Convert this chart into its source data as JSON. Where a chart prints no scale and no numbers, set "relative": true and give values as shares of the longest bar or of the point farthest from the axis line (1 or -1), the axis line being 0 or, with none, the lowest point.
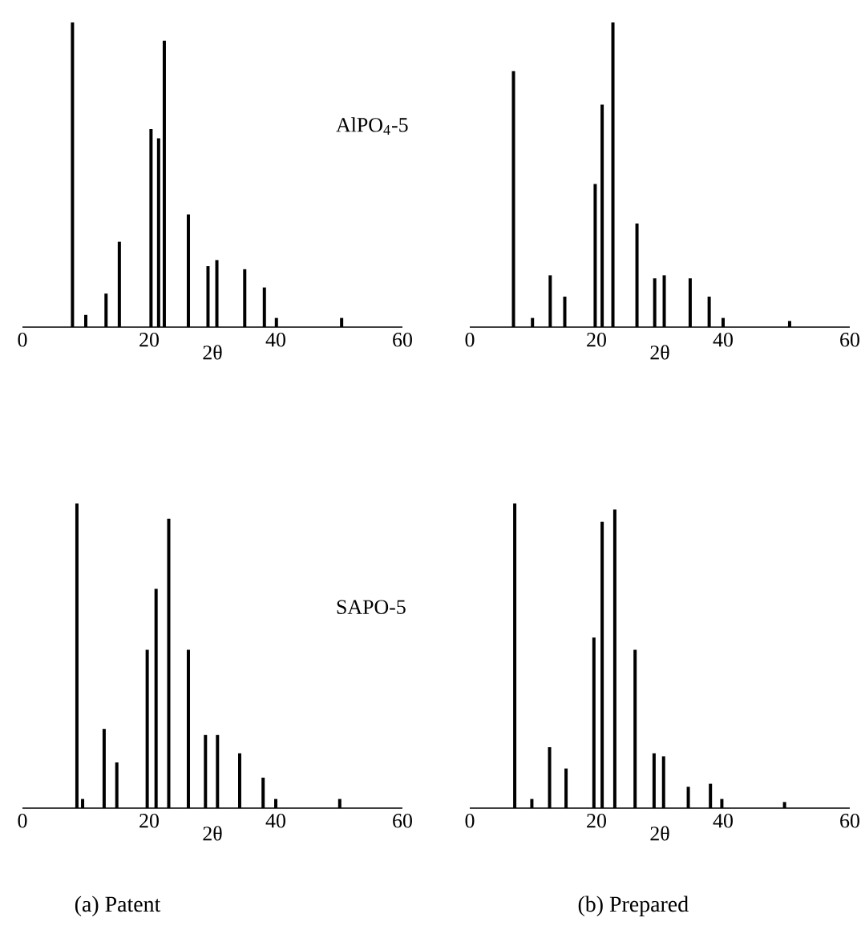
{
  "chart_data": [
    {
      "type": "bar",
      "relative": true,
      "color": "#000000",
      "xlabel": "2θ",
      "xlim": [
        0,
        60
      ],
      "xticks": [
        0,
        20,
        40,
        60
      ],
      "annotations": [
        "AlPO$_{4}$-5"
      ],
      "x": [
        7.9,
        10.0,
        13.2,
        15.3,
        20.3,
        21.5,
        22.4,
        26.2,
        29.3,
        30.7,
        35.1,
        38.2,
        40.1,
        50.4
      ],
      "values": [
        1.0,
        0.04,
        0.11,
        0.28,
        0.65,
        0.62,
        0.94,
        0.37,
        0.2,
        0.22,
        0.19,
        0.13,
        0.03,
        0.03
      ]
    },
    {
      "type": "bar",
      "relative": true,
      "color": "#000000",
      "xlabel": "2θ",
      "xlim": [
        0,
        60
      ],
      "xticks": [
        0,
        20,
        40,
        60
      ],
      "x": [
        6.9,
        9.9,
        12.7,
        15.0,
        19.8,
        20.9,
        22.6,
        26.4,
        29.2,
        30.7,
        34.8,
        37.8,
        40.0,
        50.5
      ],
      "values": [
        0.84,
        0.03,
        0.17,
        0.1,
        0.47,
        0.73,
        1.0,
        0.34,
        0.16,
        0.17,
        0.16,
        0.1,
        0.03,
        0.02
      ]
    },
    {
      "type": "bar",
      "relative": true,
      "color": "#000000",
      "title": "(a)  Patent",
      "xlabel": "2θ",
      "xlim": [
        0,
        60
      ],
      "xticks": [
        0,
        20,
        40,
        60
      ],
      "annotations": [
        "SAPO-5"
      ],
      "x": [
        8.6,
        9.5,
        12.9,
        14.9,
        19.7,
        21.1,
        23.1,
        26.2,
        28.9,
        30.8,
        34.3,
        38.0,
        40.0,
        50.1
      ],
      "values": [
        1.0,
        0.03,
        0.26,
        0.15,
        0.52,
        0.72,
        0.95,
        0.52,
        0.24,
        0.24,
        0.18,
        0.1,
        0.03,
        0.03
      ]
    },
    {
      "type": "bar",
      "relative": true,
      "color": "#000000",
      "title": "(b)  Prepared",
      "xlabel": "2θ",
      "xlim": [
        0,
        60
      ],
      "xticks": [
        0,
        20,
        40,
        60
      ],
      "x": [
        7.1,
        9.8,
        12.6,
        15.2,
        19.6,
        20.9,
        22.9,
        26.1,
        29.1,
        30.6,
        34.5,
        38.0,
        39.8,
        49.7
      ],
      "values": [
        1.0,
        0.03,
        0.2,
        0.13,
        0.56,
        0.94,
        0.98,
        0.52,
        0.18,
        0.17,
        0.07,
        0.08,
        0.03,
        0.02
      ]
    }
  ]
}
